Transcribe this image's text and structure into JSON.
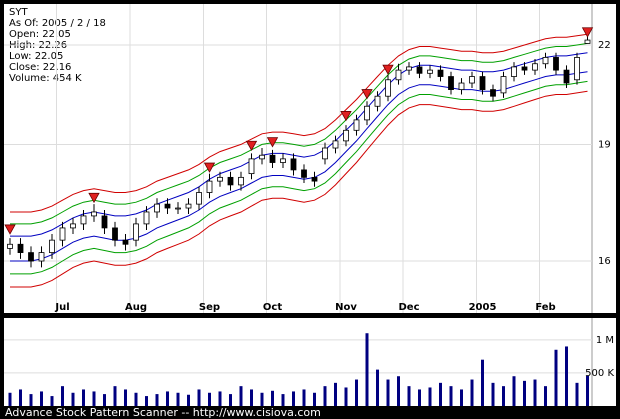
{
  "header": {
    "lines": [
      "SYT",
      "As Of: 2005 / 2 / 18",
      "Open: 22.05",
      "High: 22.26",
      "Low: 22.05",
      "Close: 22.16",
      "Volume: 454 K"
    ]
  },
  "footer": "Advance Stock Pattern Scanner -- http://www.cisiova.com",
  "chart_data": [
    {
      "type": "candlestick",
      "categories": [
        null,
        null,
        null,
        null,
        null,
        "Jul",
        null,
        null,
        null,
        null,
        null,
        null,
        "Aug",
        null,
        null,
        null,
        null,
        null,
        null,
        "Sep",
        null,
        null,
        null,
        null,
        null,
        "Oct",
        null,
        null,
        null,
        null,
        null,
        null,
        "Nov",
        null,
        null,
        null,
        null,
        null,
        "Dec",
        null,
        null,
        null,
        null,
        null,
        null,
        "2005",
        null,
        null,
        null,
        null,
        null,
        "Feb",
        null,
        null,
        null,
        null
      ],
      "open": [
        16.3,
        16.4,
        16.2,
        16.0,
        16.2,
        16.5,
        16.8,
        16.9,
        17.1,
        17.1,
        16.8,
        16.5,
        16.5,
        16.9,
        17.2,
        17.4,
        17.3,
        17.3,
        17.4,
        17.7,
        18.0,
        18.1,
        17.9,
        18.2,
        18.6,
        18.7,
        18.5,
        18.6,
        18.3,
        18.1,
        18.6,
        18.9,
        19.1,
        19.4,
        19.7,
        20.1,
        20.4,
        20.9,
        21.2,
        21.3,
        21.1,
        21.2,
        21.0,
        20.6,
        20.8,
        21.0,
        20.6,
        20.5,
        21.0,
        21.3,
        21.2,
        21.4,
        21.6,
        21.2,
        20.9,
        22.05
      ],
      "high": [
        16.55,
        16.55,
        16.35,
        16.35,
        16.65,
        16.95,
        17.05,
        17.25,
        17.4,
        17.25,
        16.95,
        16.65,
        17.05,
        17.35,
        17.55,
        17.55,
        17.45,
        17.55,
        17.85,
        18.2,
        18.25,
        18.25,
        18.25,
        18.75,
        18.9,
        18.85,
        18.75,
        18.75,
        18.45,
        18.25,
        19.05,
        19.25,
        19.55,
        19.85,
        20.25,
        20.55,
        21.05,
        21.4,
        21.45,
        21.45,
        21.35,
        21.35,
        21.15,
        20.95,
        21.15,
        21.15,
        20.75,
        21.15,
        21.45,
        21.45,
        21.55,
        21.75,
        21.75,
        21.35,
        21.75,
        22.26
      ],
      "low": [
        16.15,
        16.05,
        15.85,
        15.85,
        16.05,
        16.35,
        16.65,
        16.75,
        16.95,
        16.65,
        16.35,
        16.25,
        16.35,
        16.75,
        17.05,
        17.15,
        17.15,
        17.15,
        17.25,
        17.55,
        17.85,
        17.75,
        17.75,
        18.05,
        18.45,
        18.35,
        18.35,
        18.15,
        17.95,
        17.85,
        18.45,
        18.75,
        18.95,
        19.25,
        19.55,
        19.95,
        20.25,
        20.75,
        21.05,
        20.95,
        20.95,
        20.85,
        20.45,
        20.45,
        20.65,
        20.45,
        20.25,
        20.35,
        20.85,
        21.05,
        21.05,
        21.25,
        21.05,
        20.65,
        20.75,
        22.05
      ],
      "close": [
        16.4,
        16.2,
        16.0,
        16.2,
        16.5,
        16.8,
        16.9,
        17.1,
        17.2,
        16.8,
        16.5,
        16.4,
        16.9,
        17.2,
        17.4,
        17.3,
        17.3,
        17.4,
        17.7,
        18.0,
        18.1,
        17.9,
        18.1,
        18.6,
        18.7,
        18.5,
        18.6,
        18.3,
        18.1,
        18.0,
        18.9,
        19.1,
        19.4,
        19.7,
        20.1,
        20.4,
        20.9,
        21.2,
        21.3,
        21.1,
        21.2,
        21.0,
        20.6,
        20.8,
        21.0,
        20.6,
        20.4,
        21.0,
        21.3,
        21.2,
        21.4,
        21.6,
        21.2,
        20.8,
        21.6,
        22.16
      ],
      "up_color": "#ffffff",
      "down_color": "#000000",
      "series": [
        {
          "color": "#d00000",
          "values": [
            17.2,
            17.2,
            17.2,
            17.25,
            17.35,
            17.5,
            17.65,
            17.75,
            17.8,
            17.75,
            17.7,
            17.7,
            17.75,
            17.85,
            18.0,
            18.1,
            18.2,
            18.3,
            18.45,
            18.65,
            18.8,
            18.9,
            19.0,
            19.15,
            19.3,
            19.35,
            19.35,
            19.3,
            19.25,
            19.3,
            19.45,
            19.7,
            20.0,
            20.3,
            20.65,
            21.0,
            21.35,
            21.65,
            21.85,
            21.95,
            21.95,
            21.9,
            21.85,
            21.8,
            21.8,
            21.75,
            21.75,
            21.8,
            21.9,
            22.0,
            22.1,
            22.2,
            22.25,
            22.25,
            22.3,
            22.35
          ]
        },
        {
          "color": "#00a000",
          "values": [
            16.9,
            16.9,
            16.9,
            16.95,
            17.05,
            17.2,
            17.35,
            17.45,
            17.5,
            17.45,
            17.4,
            17.4,
            17.45,
            17.55,
            17.7,
            17.8,
            17.9,
            18.0,
            18.15,
            18.35,
            18.5,
            18.6,
            18.7,
            18.85,
            19.0,
            19.05,
            19.05,
            19.0,
            18.95,
            19.0,
            19.15,
            19.4,
            19.7,
            20.0,
            20.35,
            20.7,
            21.05,
            21.35,
            21.55,
            21.65,
            21.65,
            21.6,
            21.55,
            21.5,
            21.5,
            21.45,
            21.45,
            21.5,
            21.6,
            21.7,
            21.8,
            21.9,
            21.95,
            21.95,
            22.0,
            22.05
          ]
        },
        {
          "color": "#0000c0",
          "values": [
            16.6,
            16.6,
            16.6,
            16.65,
            16.75,
            16.9,
            17.05,
            17.15,
            17.2,
            17.15,
            17.1,
            17.1,
            17.15,
            17.25,
            17.4,
            17.5,
            17.6,
            17.7,
            17.85,
            18.05,
            18.2,
            18.3,
            18.4,
            18.55,
            18.7,
            18.75,
            18.75,
            18.7,
            18.65,
            18.7,
            18.85,
            19.1,
            19.4,
            19.7,
            20.05,
            20.4,
            20.75,
            21.05,
            21.25,
            21.35,
            21.35,
            21.3,
            21.25,
            21.2,
            21.2,
            21.15,
            21.15,
            21.2,
            21.3,
            21.4,
            21.5,
            21.6,
            21.65,
            21.65,
            21.7,
            21.75
          ]
        },
        {
          "color": "#0000c0",
          "values": [
            16.0,
            16.0,
            16.0,
            16.05,
            16.15,
            16.3,
            16.45,
            16.55,
            16.6,
            16.55,
            16.5,
            16.5,
            16.55,
            16.65,
            16.8,
            16.9,
            17.0,
            17.1,
            17.25,
            17.45,
            17.6,
            17.7,
            17.8,
            17.95,
            18.1,
            18.15,
            18.15,
            18.1,
            18.05,
            18.1,
            18.25,
            18.5,
            18.8,
            19.1,
            19.45,
            19.8,
            20.15,
            20.45,
            20.65,
            20.75,
            20.75,
            20.7,
            20.65,
            20.6,
            20.6,
            20.55,
            20.55,
            20.6,
            20.7,
            20.8,
            20.9,
            21.0,
            21.05,
            21.05,
            21.1,
            21.15
          ]
        },
        {
          "color": "#00a000",
          "values": [
            15.7,
            15.7,
            15.7,
            15.75,
            15.85,
            16.0,
            16.15,
            16.25,
            16.3,
            16.25,
            16.2,
            16.2,
            16.25,
            16.35,
            16.5,
            16.6,
            16.7,
            16.8,
            16.95,
            17.15,
            17.3,
            17.4,
            17.5,
            17.65,
            17.8,
            17.85,
            17.85,
            17.8,
            17.75,
            17.8,
            17.95,
            18.2,
            18.5,
            18.8,
            19.15,
            19.5,
            19.85,
            20.15,
            20.35,
            20.45,
            20.45,
            20.4,
            20.35,
            20.3,
            20.3,
            20.25,
            20.25,
            20.3,
            20.4,
            20.5,
            20.6,
            20.7,
            20.75,
            20.75,
            20.8,
            20.85
          ]
        },
        {
          "color": "#d00000",
          "values": [
            15.4,
            15.4,
            15.4,
            15.45,
            15.55,
            15.7,
            15.85,
            15.95,
            16.0,
            15.95,
            15.9,
            15.9,
            15.95,
            16.05,
            16.2,
            16.3,
            16.4,
            16.5,
            16.65,
            16.85,
            17.0,
            17.1,
            17.2,
            17.35,
            17.5,
            17.55,
            17.55,
            17.5,
            17.45,
            17.5,
            17.65,
            17.9,
            18.2,
            18.5,
            18.85,
            19.2,
            19.55,
            19.85,
            20.05,
            20.15,
            20.15,
            20.1,
            20.05,
            20.0,
            20.0,
            19.95,
            19.95,
            20.0,
            20.1,
            20.2,
            20.3,
            20.4,
            20.45,
            20.45,
            20.5,
            20.55
          ]
        }
      ],
      "markers": {
        "color": "#e02020",
        "values": [
          16.75,
          null,
          null,
          null,
          null,
          null,
          null,
          null,
          17.55,
          null,
          null,
          null,
          null,
          null,
          null,
          null,
          null,
          null,
          null,
          18.35,
          null,
          null,
          null,
          18.95,
          null,
          19.05,
          null,
          null,
          null,
          null,
          null,
          null,
          19.8,
          null,
          20.45,
          null,
          21.2,
          null,
          null,
          null,
          null,
          null,
          null,
          null,
          null,
          null,
          null,
          null,
          null,
          null,
          null,
          null,
          null,
          null,
          null,
          22.4
        ]
      },
      "ylim": [
        14.82,
        23.37
      ],
      "yticks": [
        16,
        19,
        22
      ],
      "log_scale": true,
      "grid": true
    },
    {
      "type": "bar",
      "color": "#000080",
      "values": [
        200000,
        250000,
        180000,
        220000,
        150000,
        300000,
        200000,
        250000,
        220000,
        180000,
        300000,
        250000,
        200000,
        150000,
        180000,
        220000,
        200000,
        170000,
        250000,
        200000,
        220000,
        180000,
        300000,
        250000,
        200000,
        230000,
        180000,
        220000,
        250000,
        200000,
        300000,
        350000,
        280000,
        400000,
        1100000,
        550000,
        400000,
        450000,
        300000,
        250000,
        280000,
        350000,
        300000,
        250000,
        400000,
        700000,
        350000,
        300000,
        450000,
        380000,
        400000,
        300000,
        850000,
        900000,
        350000,
        454000
      ],
      "ylim": [
        0,
        1300000
      ],
      "yticks": [
        {
          "value": 1000000,
          "label": "1 M"
        },
        {
          "value": 500000,
          "label": "500 K"
        }
      ],
      "grid": true
    }
  ]
}
